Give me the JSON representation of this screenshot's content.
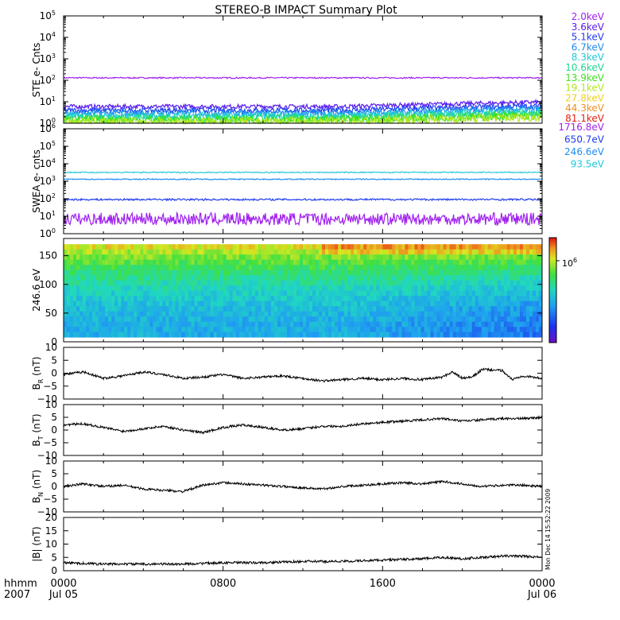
{
  "colors": {
    "axis": "#000000",
    "trace": "#000000",
    "background": "#ffffff"
  },
  "chart_data": {
    "type": "line",
    "title": "STEREO-B IMPACT Summary Plot",
    "time_axis": {
      "corner_labels": [
        "hhmm",
        "2007"
      ],
      "xlim_hours": [
        0,
        24
      ],
      "ticks": [
        {
          "t": 0,
          "time": "0000",
          "date": "Jul 05"
        },
        {
          "t": 8,
          "time": "0800",
          "date": ""
        },
        {
          "t": 16,
          "time": "1600",
          "date": ""
        },
        {
          "t": 24,
          "time": "0000",
          "date": "Jul 06"
        }
      ]
    },
    "side_stamp": "Mon Dec 14 15:52:22 2009",
    "panels": [
      {
        "id": "ste",
        "ylabel": "STE e- Cnts",
        "scale": "log",
        "ylim": [
          1,
          100000
        ],
        "ytick_exponents": [
          "0",
          "1",
          "2",
          "3",
          "4",
          "5"
        ],
        "legend": [
          {
            "name": "2.0keV",
            "color": "#a020f0"
          },
          {
            "name": "3.6keV",
            "color": "#5a1cf0"
          },
          {
            "name": "5.1keV",
            "color": "#1f3cf0"
          },
          {
            "name": "6.7keV",
            "color": "#1e8cf0"
          },
          {
            "name": "8.3keV",
            "color": "#20c8d8"
          },
          {
            "name": "10.6keV",
            "color": "#20d890"
          },
          {
            "name": "13.9keV",
            "color": "#40e020"
          },
          {
            "name": "19.1keV",
            "color": "#b0e820"
          },
          {
            "name": "27.8keV",
            "color": "#f0d020"
          },
          {
            "name": "44.3keV",
            "color": "#f09020"
          },
          {
            "name": "81.1keV",
            "color": "#e02010"
          }
        ],
        "series": [
          {
            "name": "2.0keV",
            "level": 130,
            "noise": 0.03
          },
          {
            "name": "3.6keV",
            "level": 6,
            "noise": 0.1
          },
          {
            "name": "5.1keV",
            "level": 4,
            "noise": 0.12
          },
          {
            "name": "6.7keV",
            "level": 3,
            "noise": 0.14
          },
          {
            "name": "8.3keV",
            "level": 2.3,
            "noise": 0.16
          },
          {
            "name": "10.6keV",
            "level": 1.8,
            "noise": 0.18
          },
          {
            "name": "13.9keV",
            "level": 1.4,
            "noise": 0.2
          },
          {
            "name": "19.1keV",
            "level": 1.2,
            "noise": 0.2
          }
        ]
      },
      {
        "id": "swea",
        "ylabel": "SWEA e- cnts",
        "scale": "log",
        "ylim": [
          1,
          1000000
        ],
        "ytick_exponents": [
          "0",
          "1",
          "2",
          "3",
          "4",
          "5",
          "6"
        ],
        "legend": [
          {
            "name": "1716.8eV",
            "color": "#a020f0"
          },
          {
            "name": "650.7eV",
            "color": "#1f3cf0"
          },
          {
            "name": "246.6eV",
            "color": "#1e8cf0"
          },
          {
            "name": "93.5eV",
            "color": "#20c8d8"
          }
        ],
        "series": [
          {
            "name": "93.5eV",
            "level": 3200,
            "noise": 0.03
          },
          {
            "name": "246.6eV",
            "level": 1300,
            "noise": 0.03
          },
          {
            "name": "650.7eV",
            "level": 90,
            "noise": 0.05
          },
          {
            "name": "1716.8eV",
            "level": 7,
            "noise": 0.35
          }
        ]
      },
      {
        "id": "pad",
        "type": "heatmap",
        "ylabel": "246.6 eV",
        "ylim": [
          0,
          180
        ],
        "yticks": [
          "0",
          "50",
          "100",
          "150"
        ],
        "colorbar": {
          "mantissa": "10",
          "exponent": "6"
        }
      },
      {
        "id": "br",
        "ylabel_main": "B",
        "ylabel_sub": "R",
        "ylabel_unit": " (nT)",
        "ylim": [
          -10,
          10
        ],
        "yticks": [
          "−10",
          "−5",
          "0",
          "5",
          "10"
        ],
        "series": [
          {
            "t": [
              0,
              1,
              2,
              3,
              4,
              5,
              6,
              7,
              8,
              9,
              10,
              11,
              12,
              13,
              14,
              15,
              16,
              17,
              18,
              19,
              19.5,
              20,
              20.5,
              21,
              22,
              22.5,
              23,
              24
            ],
            "v": [
              -0.5,
              0.5,
              -2,
              -1,
              0.5,
              -0.5,
              -2,
              -1.5,
              -0.5,
              -2,
              -1.5,
              -1,
              -2,
              -3,
              -2.5,
              -2,
              -2.5,
              -2,
              -2.5,
              -1.5,
              0.5,
              -2,
              -1.5,
              1.5,
              1,
              -2.5,
              -1,
              -2
            ]
          }
        ]
      },
      {
        "id": "bt",
        "ylabel_main": "B",
        "ylabel_sub": "T",
        "ylabel_unit": " (nT)",
        "ylim": [
          -10,
          10
        ],
        "yticks": [
          "−10",
          "−5",
          "0",
          "5",
          "10"
        ],
        "series": [
          {
            "t": [
              0,
              1,
              2,
              3,
              4,
              5,
              6,
              7,
              8,
              9,
              10,
              11,
              12,
              13,
              14,
              15,
              16,
              17,
              18,
              19,
              20,
              21,
              22,
              23,
              24
            ],
            "v": [
              2,
              2.5,
              1,
              -0.5,
              0.5,
              1.5,
              0,
              -1,
              1,
              2,
              1,
              0,
              0.5,
              1.5,
              1.5,
              2.5,
              3,
              3.5,
              4,
              4.5,
              3.5,
              4,
              4.5,
              4.5,
              5
            ]
          }
        ]
      },
      {
        "id": "bn",
        "ylabel_main": "B",
        "ylabel_sub": "N",
        "ylabel_unit": " (nT)",
        "ylim": [
          -10,
          10
        ],
        "yticks": [
          "−10",
          "−5",
          "0",
          "5",
          "10"
        ],
        "series": [
          {
            "t": [
              0,
              1,
              2,
              3,
              4,
              5,
              6,
              7,
              8,
              9,
              10,
              11,
              12,
              13,
              14,
              15,
              16,
              17,
              18,
              19,
              20,
              21,
              22,
              23,
              24
            ],
            "v": [
              0,
              1,
              0,
              0.5,
              -1,
              -1.5,
              -2,
              0.5,
              1.5,
              1,
              0.5,
              0,
              -0.5,
              -1,
              0,
              0.5,
              1,
              1.5,
              1,
              2,
              1,
              0,
              0.5,
              0.5,
              0
            ]
          }
        ]
      },
      {
        "id": "bmag",
        "ylabel_main": "|B|",
        "ylabel_sub": "",
        "ylabel_unit": " (nT)",
        "ylim": [
          0,
          20
        ],
        "yticks": [
          "0",
          "5",
          "10",
          "15",
          "20"
        ],
        "series": [
          {
            "t": [
              0,
              2,
              4,
              6,
              8,
              10,
              12,
              14,
              16,
              18,
              19,
              20,
              21,
              22,
              23,
              24
            ],
            "v": [
              3,
              2.5,
              2.5,
              2.5,
              3,
              3,
              3.5,
              3.5,
              4,
              4.5,
              5,
              4.5,
              5,
              5.5,
              5.5,
              5
            ]
          }
        ]
      }
    ]
  }
}
